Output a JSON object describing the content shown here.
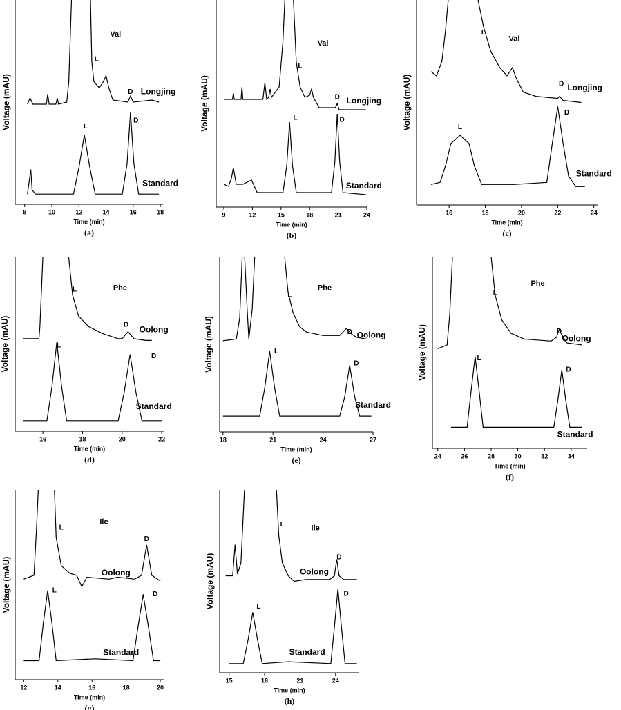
{
  "chart_data": [
    {
      "type": "line",
      "caption": "(a)",
      "x_label": "Time (min)",
      "y_label": "Voltage (mAU)",
      "xlim": [
        7.3,
        18.2
      ],
      "xticks": [
        8,
        10,
        12,
        14,
        16,
        18
      ],
      "ylim": [
        0,
        100
      ],
      "series": [
        {
          "name": "Longjing",
          "color": "#000000",
          "label_x": 17.85,
          "label_y": 55,
          "x": [
            8.2,
            8.4,
            8.6,
            9.6,
            9.7,
            9.8,
            10.3,
            10.4,
            10.5,
            11.1,
            11.25,
            11.45,
            12.1,
            12.85,
            12.95,
            13.1,
            13.5,
            13.8,
            14.0,
            14.2,
            14.5,
            15.6,
            15.8,
            16.0,
            17.4,
            17.9
          ],
          "values": [
            49,
            52,
            49,
            49,
            54,
            49,
            49,
            52,
            49,
            50,
            60,
            100,
            null,
            100,
            70,
            60,
            57,
            60,
            63,
            57,
            51,
            50,
            53,
            50,
            51,
            50
          ]
        },
        {
          "name": "Standard",
          "color": "#000000",
          "label_x": 18.0,
          "label_y": 10,
          "x": [
            8.2,
            8.35,
            8.45,
            8.55,
            8.8,
            11.6,
            12.0,
            12.4,
            12.8,
            13.2,
            15.2,
            15.55,
            15.8,
            16.05,
            16.4,
            17.9
          ],
          "values": [
            5,
            12,
            17,
            7,
            5,
            5,
            18,
            34,
            18,
            5,
            5,
            20,
            45,
            20,
            5,
            5
          ]
        }
      ],
      "annotations": [
        {
          "text": "Val",
          "x": 14.7,
          "y": 83
        },
        {
          "text": "L",
          "x": 13.3,
          "y": 71
        },
        {
          "text": "D",
          "x": 15.8,
          "y": 55
        },
        {
          "text": "L",
          "x": 12.5,
          "y": 38
        },
        {
          "text": "D",
          "x": 16.2,
          "y": 41
        }
      ]
    },
    {
      "type": "line",
      "caption": "(b)",
      "x_label": "Time (min)",
      "y_label": "Voltage (mAU)",
      "xlim": [
        8.2,
        24
      ],
      "xticks": [
        9,
        12,
        15,
        18,
        21,
        24
      ],
      "ylim": [
        0,
        100
      ],
      "series": [
        {
          "name": "Longjing",
          "color": "#000000",
          "label_x": 23.7,
          "label_y": 51,
          "x": [
            9.0,
            9.9,
            10.0,
            10.1,
            10.8,
            10.9,
            11.0,
            13.1,
            13.3,
            13.5,
            13.7,
            13.85,
            14.0,
            14.8,
            15.2,
            15.4,
            15.9,
            16.3,
            16.6,
            17.0,
            17.5,
            18.0,
            18.2,
            18.4,
            19.0,
            20.7,
            20.9,
            21.1,
            23.9
          ],
          "values": [
            52,
            52,
            55,
            52,
            52,
            58,
            52,
            52,
            60,
            52,
            53,
            57,
            53,
            58,
            80,
            100,
            null,
            100,
            70,
            58,
            53,
            54,
            57,
            53,
            48,
            48,
            50,
            47,
            47
          ]
        },
        {
          "name": "Standard",
          "color": "#000000",
          "label_x": 23.7,
          "label_y": 10,
          "x": [
            9.0,
            9.5,
            9.8,
            10.0,
            10.3,
            11.0,
            11.9,
            12.5,
            15.2,
            15.6,
            15.9,
            16.2,
            16.6,
            20.3,
            20.65,
            20.9,
            21.15,
            21.5,
            23.9
          ],
          "values": [
            11,
            10,
            14,
            19,
            11,
            11,
            13,
            7,
            7,
            20,
            41,
            20,
            7,
            7,
            22,
            45,
            22,
            7,
            6
          ]
        }
      ],
      "annotations": [
        {
          "text": "Val",
          "x": 19.4,
          "y": 79
        },
        {
          "text": "L",
          "x": 17.0,
          "y": 68
        },
        {
          "text": "D",
          "x": 20.9,
          "y": 53
        },
        {
          "text": "L",
          "x": 16.5,
          "y": 43
        },
        {
          "text": "D",
          "x": 21.4,
          "y": 42
        }
      ]
    },
    {
      "type": "line",
      "caption": "(c)",
      "x_label": "Time (min)",
      "y_label": "Voltage (mAU)",
      "xlim": [
        14.2,
        24.2
      ],
      "xticks": [
        16,
        18,
        20,
        22,
        24
      ],
      "ylim": [
        0,
        100
      ],
      "series": [
        {
          "name": "Longjing",
          "color": "#000000",
          "label_x": 23.5,
          "label_y": 57,
          "x": [
            15.0,
            15.3,
            15.6,
            15.8,
            15.95,
            16.8,
            17.6,
            17.9,
            18.3,
            18.8,
            19.2,
            19.5,
            19.7,
            20.1,
            20.8,
            22.0,
            22.1,
            22.3,
            23.3
          ],
          "values": [
            65,
            63,
            70,
            85,
            100,
            null,
            100,
            87,
            75,
            67,
            63,
            67,
            62,
            55,
            53,
            52,
            53,
            51,
            50
          ]
        },
        {
          "name": "Standard",
          "color": "#000000",
          "label_x": 24.0,
          "label_y": 15,
          "x": [
            15.0,
            15.5,
            15.8,
            16.1,
            16.6,
            17.1,
            17.4,
            17.8,
            19.6,
            21.4,
            21.7,
            22.0,
            22.3,
            22.6,
            23.0,
            23.5
          ],
          "values": [
            10,
            11,
            19,
            30,
            34,
            30,
            19,
            10,
            10,
            11,
            30,
            48,
            30,
            14,
            9,
            9
          ]
        }
      ],
      "annotations": [
        {
          "text": "Val",
          "x": 19.6,
          "y": 81
        },
        {
          "text": "L",
          "x": 17.9,
          "y": 84
        },
        {
          "text": "D",
          "x": 22.2,
          "y": 59
        },
        {
          "text": "L",
          "x": 16.6,
          "y": 38
        },
        {
          "text": "D",
          "x": 22.5,
          "y": 45
        }
      ]
    },
    {
      "type": "line",
      "caption": "(d)",
      "x_label": "Time (min)",
      "y_label": "Voltage (mAU)",
      "xlim": [
        14.6,
        22.1
      ],
      "xticks": [
        16,
        18,
        20,
        22
      ],
      "ylim": [
        0,
        100
      ],
      "series": [
        {
          "name": "Oolong",
          "color": "#000000",
          "label_x": 21.6,
          "label_y": 58,
          "x": [
            15.0,
            15.8,
            15.85,
            16.0,
            16.8,
            17.3,
            17.5,
            17.8,
            18.3,
            19.0,
            19.8,
            20.0,
            20.3,
            20.6,
            21.2,
            21.5
          ],
          "values": [
            53,
            53,
            60,
            100,
            null,
            100,
            78,
            66,
            60,
            56,
            53,
            53,
            57,
            53,
            52,
            52
          ]
        },
        {
          "name": "Standard",
          "color": "#000000",
          "label_x": 21.6,
          "label_y": 14,
          "x": [
            15.0,
            16.2,
            16.45,
            16.7,
            16.95,
            17.2,
            19.8,
            20.1,
            20.4,
            20.7,
            21.0,
            22.0
          ],
          "values": [
            6,
            6,
            25,
            51,
            25,
            6,
            6,
            22,
            44,
            22,
            6,
            6
          ]
        }
      ],
      "annotations": [
        {
          "text": "Phe",
          "x": 19.9,
          "y": 82
        },
        {
          "text": "L",
          "x": 17.6,
          "y": 81
        },
        {
          "text": "D",
          "x": 20.2,
          "y": 61
        },
        {
          "text": "L",
          "x": 16.8,
          "y": 49
        },
        {
          "text": "D",
          "x": 21.6,
          "y": 43
        }
      ]
    },
    {
      "type": "line",
      "caption": "(e)",
      "x_label": "Time (min)",
      "y_label": "Voltage (mAU)",
      "xlim": [
        17.8,
        27
      ],
      "xticks": [
        18,
        21,
        24,
        27
      ],
      "ylim": [
        0,
        100
      ],
      "series": [
        {
          "name": "Oolong",
          "color": "#000000",
          "label_x": 26.9,
          "label_y": 55,
          "x": [
            18.0,
            18.8,
            19.0,
            19.15,
            19.2,
            19.3,
            19.45,
            19.55,
            19.75,
            19.9,
            20.5,
            21.7,
            21.9,
            22.2,
            22.6,
            23.0,
            24.0,
            25.0,
            25.4,
            25.7,
            26.0,
            26.6
          ],
          "values": [
            52,
            53,
            65,
            100,
            null,
            100,
            70,
            53,
            70,
            100,
            null,
            100,
            80,
            68,
            60,
            57,
            55,
            55,
            59,
            56,
            54,
            53
          ]
        },
        {
          "name": "Standard",
          "color": "#000000",
          "label_x": 27.0,
          "label_y": 15,
          "x": [
            18.0,
            20.2,
            20.5,
            20.8,
            21.1,
            21.4,
            25.0,
            25.3,
            25.6,
            25.9,
            26.2,
            26.9
          ],
          "values": [
            9,
            9,
            25,
            46,
            25,
            9,
            9,
            20,
            38,
            20,
            9,
            9
          ]
        }
      ],
      "annotations": [
        {
          "text": "Phe",
          "x": 24.1,
          "y": 82
        },
        {
          "text": "L",
          "x": 22.0,
          "y": 78
        },
        {
          "text": "D",
          "x": 25.6,
          "y": 57
        },
        {
          "text": "L",
          "x": 21.2,
          "y": 46
        },
        {
          "text": "D",
          "x": 26.0,
          "y": 39
        }
      ]
    },
    {
      "type": "line",
      "caption": "(f)",
      "x_label": "Time (min)",
      "y_label": "Voltage (mAU)",
      "xlim": [
        23.6,
        35.2
      ],
      "xticks": [
        24,
        26,
        28,
        30,
        32,
        34
      ],
      "ylim": [
        0,
        100
      ],
      "series": [
        {
          "name": "Oolong",
          "color": "#000000",
          "label_x": 34.4,
          "label_y": 57,
          "x": [
            24.0,
            24.7,
            24.9,
            25.1,
            26.5,
            28.0,
            28.3,
            28.8,
            29.5,
            30.5,
            32.5,
            32.9,
            33.1,
            33.4,
            33.7,
            34.8
          ],
          "values": [
            52,
            54,
            70,
            100,
            null,
            100,
            80,
            67,
            60,
            57,
            56,
            58,
            62,
            58,
            55,
            54
          ]
        },
        {
          "name": "Standard",
          "color": "#000000",
          "label_x": 34.3,
          "label_y": 7,
          "x": [
            25.0,
            26.2,
            26.5,
            26.8,
            27.1,
            27.4,
            32.7,
            33.0,
            33.3,
            33.6,
            33.9,
            34.8
          ],
          "values": [
            11,
            11,
            30,
            48,
            30,
            11,
            11,
            25,
            41,
            25,
            11,
            11
          ]
        }
      ],
      "annotations": [
        {
          "text": "Phe",
          "x": 31.5,
          "y": 86
        },
        {
          "text": "L",
          "x": 28.3,
          "y": 81
        },
        {
          "text": "D",
          "x": 33.1,
          "y": 61
        },
        {
          "text": "L",
          "x": 27.1,
          "y": 47
        },
        {
          "text": "D",
          "x": 33.8,
          "y": 41
        }
      ]
    },
    {
      "type": "line",
      "caption": "(g)",
      "x_label": "Time (min)",
      "y_label": "Voltage (mAU)",
      "xlim": [
        11.5,
        20.2
      ],
      "xticks": [
        12,
        14,
        16,
        18,
        20
      ],
      "ylim": [
        0,
        100
      ],
      "series": [
        {
          "name": "Oolong",
          "color": "#000000",
          "label_x": 17.4,
          "label_y": 56,
          "x": [
            12.0,
            12.6,
            12.75,
            12.85,
            13.3,
            13.8,
            13.9,
            14.2,
            14.7,
            15.1,
            15.4,
            15.7,
            17.0,
            17.5,
            18.5,
            18.9,
            19.2,
            19.5,
            20.0
          ],
          "values": [
            53,
            55,
            80,
            100,
            null,
            100,
            75,
            60,
            56,
            55,
            49,
            54,
            53,
            54,
            53,
            55,
            71,
            55,
            52
          ]
        },
        {
          "name": "Standard",
          "color": "#000000",
          "label_x": 17.7,
          "label_y": 14,
          "x": [
            12.0,
            12.9,
            13.15,
            13.4,
            13.65,
            13.9,
            16.2,
            18.4,
            18.7,
            19.0,
            19.3,
            19.6,
            20.0
          ],
          "values": [
            10,
            10,
            30,
            47,
            30,
            10,
            11,
            10,
            28,
            45,
            28,
            10,
            10
          ]
        }
      ],
      "annotations": [
        {
          "text": "Ile",
          "x": 16.7,
          "y": 83
        },
        {
          "text": "L",
          "x": 14.2,
          "y": 80
        },
        {
          "text": "D",
          "x": 19.2,
          "y": 74
        },
        {
          "text": "L",
          "x": 13.8,
          "y": 47
        },
        {
          "text": "D",
          "x": 19.7,
          "y": 45
        }
      ]
    },
    {
      "type": "line",
      "caption": "(h)",
      "x_label": "Time (min)",
      "y_label": "Voltage (mAU)",
      "xlim": [
        14.2,
        26
      ],
      "xticks": [
        15,
        18,
        21,
        24
      ],
      "ylim": [
        0,
        100
      ],
      "series": [
        {
          "name": "Oolong",
          "color": "#000000",
          "label_x": 22.2,
          "label_y": 55,
          "x": [
            14.7,
            15.3,
            15.5,
            15.7,
            16.0,
            16.3,
            17.5,
            19.0,
            19.2,
            19.5,
            20.0,
            20.5,
            21.5,
            23.5,
            23.9,
            24.1,
            24.3,
            24.7,
            25.8
          ],
          "values": [
            53,
            53,
            70,
            54,
            60,
            100,
            null,
            100,
            75,
            60,
            53,
            50,
            51,
            51,
            53,
            62,
            53,
            51,
            51
          ]
        },
        {
          "name": "Standard",
          "color": "#000000",
          "label_x": 21.6,
          "label_y": 11,
          "x": [
            15.0,
            16.2,
            16.6,
            17.0,
            17.4,
            17.8,
            20.0,
            23.6,
            23.9,
            24.2,
            24.5,
            24.8,
            25.8
          ],
          "values": [
            5,
            5,
            18,
            33,
            18,
            5,
            6,
            5,
            25,
            46,
            25,
            5,
            5
          ]
        }
      ],
      "annotations": [
        {
          "text": "Ile",
          "x": 22.3,
          "y": 79
        },
        {
          "text": "L",
          "x": 19.5,
          "y": 81
        },
        {
          "text": "D",
          "x": 24.3,
          "y": 63
        },
        {
          "text": "L",
          "x": 17.5,
          "y": 36
        },
        {
          "text": "D",
          "x": 24.9,
          "y": 43
        }
      ]
    }
  ]
}
